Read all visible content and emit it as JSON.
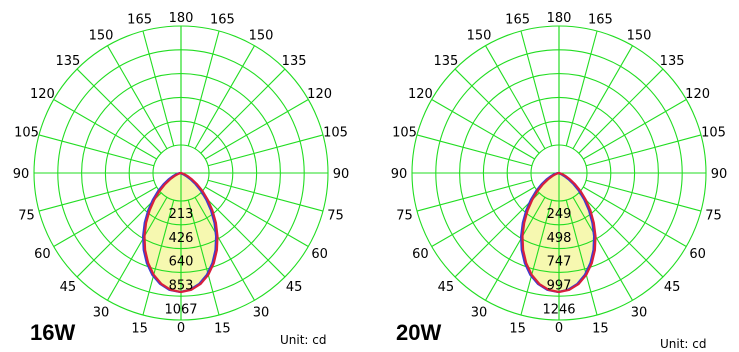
{
  "colors": {
    "grid": "#22dd22",
    "fill": "#f4f7a2",
    "curve_c0": "#d81f3c",
    "curve_c90": "#3b3bd6",
    "text": "#000000"
  },
  "chart_data": [
    {
      "type": "polar",
      "label": "16W",
      "unit_label": "Unit: cd",
      "angle_ticks": [
        0,
        15,
        30,
        45,
        60,
        75,
        90,
        105,
        120,
        135,
        150,
        165,
        180
      ],
      "ring_labels": [
        "213",
        "426",
        "640",
        "853",
        "1067"
      ],
      "ring_values": [
        213,
        426,
        640,
        853,
        1067
      ],
      "r_max": 1067,
      "series": [
        {
          "angles": [
            0,
            5,
            10,
            15,
            20,
            25,
            30,
            35,
            40,
            45,
            50,
            55,
            60,
            65,
            70,
            75,
            80,
            85,
            90
          ],
          "values": [
            1067,
            1052,
            1010,
            945,
            860,
            762,
            655,
            545,
            438,
            338,
            250,
            175,
            113,
            65,
            33,
            13,
            4,
            1,
            0
          ]
        }
      ]
    },
    {
      "type": "polar",
      "label": "20W",
      "unit_label": "Unit: cd",
      "angle_ticks": [
        0,
        15,
        30,
        45,
        60,
        75,
        90,
        105,
        120,
        135,
        150,
        165,
        180
      ],
      "ring_labels": [
        "249",
        "498",
        "747",
        "997",
        "1246"
      ],
      "ring_values": [
        249,
        498,
        747,
        997,
        1246
      ],
      "r_max": 1246,
      "series": [
        {
          "angles": [
            0,
            5,
            10,
            15,
            20,
            25,
            30,
            35,
            40,
            45,
            50,
            55,
            60,
            65,
            70,
            75,
            80,
            85,
            90
          ],
          "values": [
            1246,
            1229,
            1180,
            1104,
            1004,
            890,
            765,
            636,
            511,
            395,
            292,
            204,
            132,
            76,
            38,
            15,
            5,
            1,
            0
          ]
        }
      ]
    }
  ]
}
